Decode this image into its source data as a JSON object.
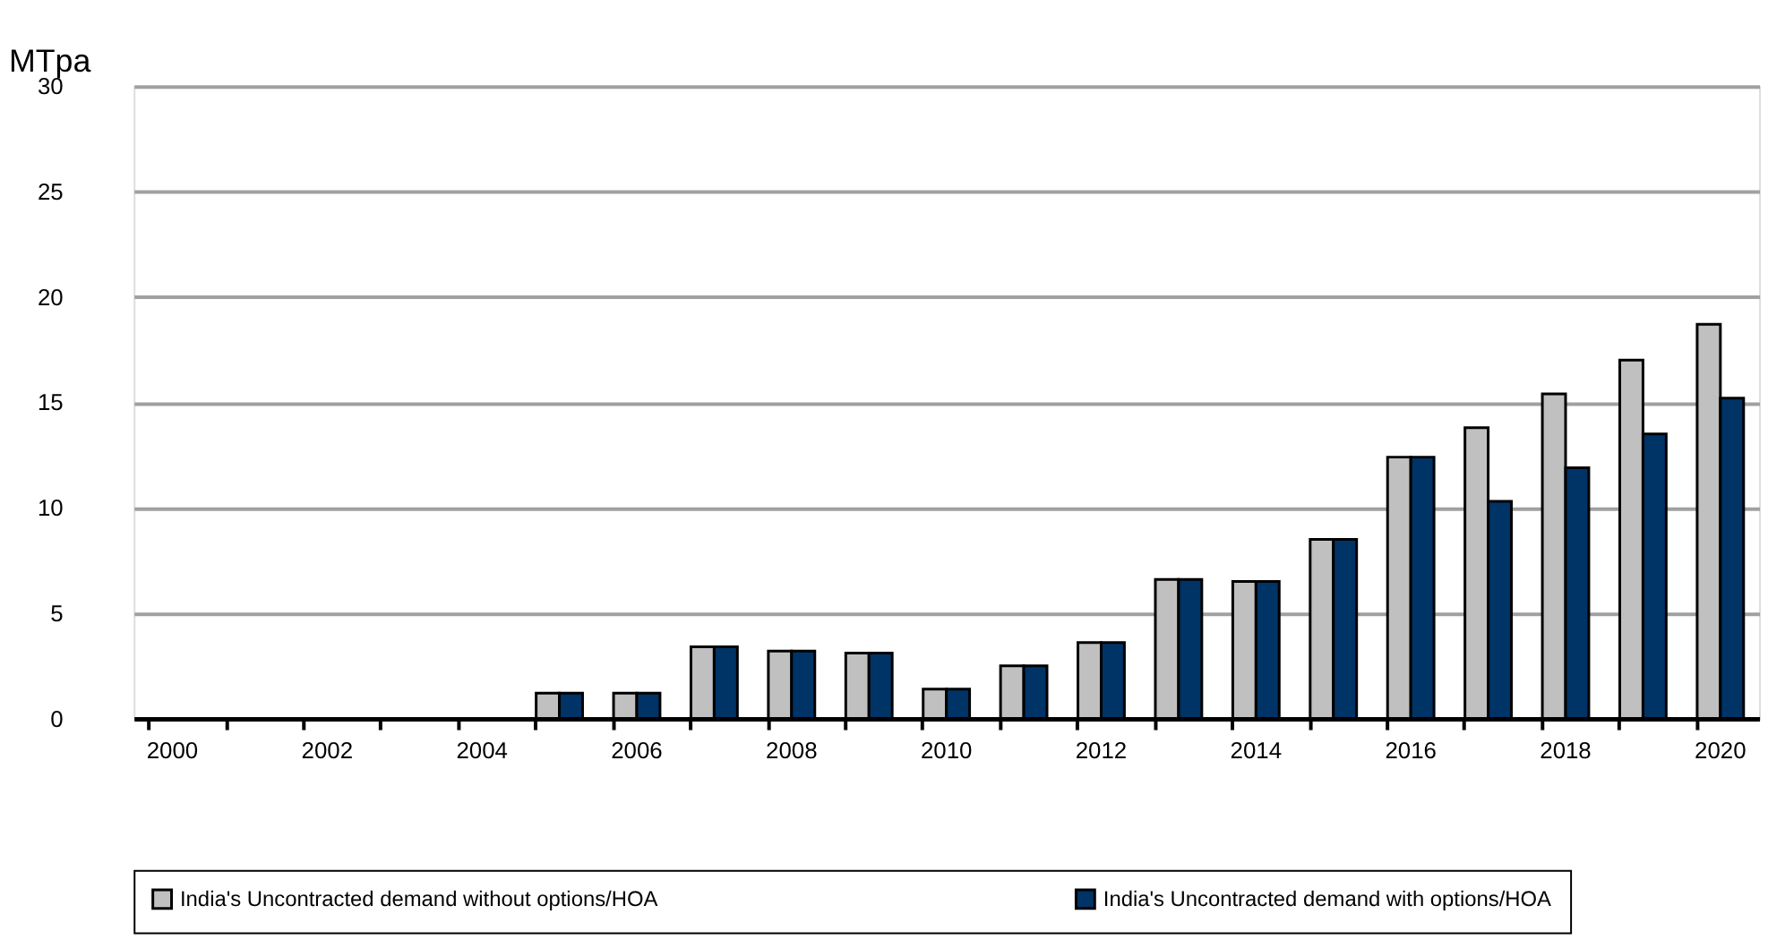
{
  "chart_data": {
    "type": "bar",
    "ylabel": "MTpa",
    "categories": [
      "2000",
      null,
      "2002",
      null,
      "2004",
      null,
      "2006",
      null,
      "2008",
      null,
      "2010",
      null,
      "2012",
      null,
      "2014",
      null,
      "2016",
      null,
      "2018",
      null,
      "2020"
    ],
    "series": [
      {
        "name": "India's Uncontracted demand without options/HOA",
        "color": "#c0c0c0",
        "values": [
          null,
          null,
          null,
          null,
          null,
          1.2,
          1.2,
          3.4,
          3.2,
          3.1,
          1.4,
          2.5,
          3.6,
          6.6,
          6.5,
          8.5,
          12.4,
          13.8,
          15.4,
          17.0,
          18.7
        ]
      },
      {
        "name": "India's Uncontracted demand with options/HOA",
        "color": "#003366",
        "values": [
          null,
          null,
          null,
          null,
          null,
          1.2,
          1.2,
          3.4,
          3.2,
          3.1,
          1.4,
          2.5,
          3.6,
          6.6,
          6.5,
          8.5,
          12.4,
          10.3,
          11.9,
          13.5,
          15.2
        ]
      }
    ],
    "ylim": [
      0,
      30
    ],
    "yticks": [
      0,
      5,
      10,
      15,
      20,
      25,
      30
    ],
    "grid": "y",
    "legend": "bottom"
  }
}
